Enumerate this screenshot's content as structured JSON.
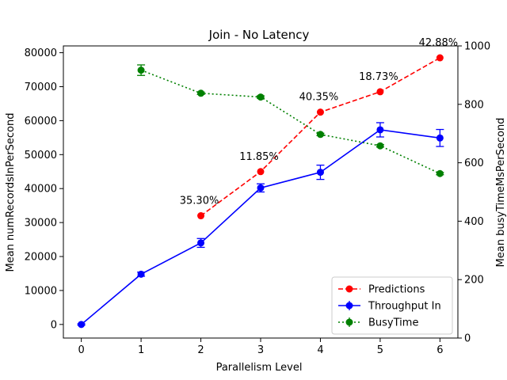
{
  "chart_data": {
    "type": "line",
    "title": "Join - No Latency",
    "xlabel": "Parallelism Level",
    "ylabel_left": "Mean numRecordsInPerSecond",
    "ylabel_right": "Mean busyTimeMsPerSecond",
    "x_ticks": [
      "0",
      "1",
      "2",
      "3",
      "4",
      "5",
      "6"
    ],
    "y_left_ticks": [
      "0",
      "10000",
      "20000",
      "30000",
      "40000",
      "50000",
      "60000",
      "70000",
      "80000"
    ],
    "y_right_ticks": [
      "0",
      "200",
      "400",
      "600",
      "800",
      "1000"
    ],
    "xlim": [
      -0.3,
      6.3
    ],
    "ylim_left": [
      -4000,
      82000
    ],
    "ylim_right": [
      0,
      1000
    ],
    "grid": false,
    "legend_position": "lower-right",
    "series": [
      {
        "name": "Predictions",
        "axis": "left",
        "color": "#ff0000",
        "line_style": "dashed",
        "marker": "circle",
        "x": [
          2,
          3,
          4,
          5,
          6
        ],
        "y": [
          32000,
          45000,
          62500,
          68500,
          78500
        ]
      },
      {
        "name": "Throughput In",
        "axis": "left",
        "color": "#0000ff",
        "line_style": "solid",
        "marker": "circle",
        "error_bars": true,
        "x": [
          0,
          1,
          2,
          3,
          4,
          5,
          6
        ],
        "y": [
          0,
          14800,
          24000,
          40200,
          44800,
          57300,
          54900
        ],
        "err": [
          200,
          600,
          1300,
          1200,
          2100,
          2100,
          2500
        ]
      },
      {
        "name": "BusyTime",
        "axis": "right",
        "color": "#008000",
        "line_style": "dotted",
        "marker": "circle",
        "error_bars": true,
        "x": [
          1,
          2,
          3,
          4,
          5,
          6
        ],
        "y": [
          917,
          838,
          825,
          697,
          658,
          563
        ],
        "err": [
          18,
          4,
          4,
          4,
          4,
          4
        ]
      }
    ],
    "annotations": [
      {
        "text": "35.30%",
        "x": 2,
        "y": 32000
      },
      {
        "text": "11.85%",
        "x": 3,
        "y": 45000
      },
      {
        "text": "40.35%",
        "x": 4,
        "y": 62500
      },
      {
        "text": "18.73%",
        "x": 5,
        "y": 68500
      },
      {
        "text": "42.88%",
        "x": 6,
        "y": 78500
      }
    ]
  }
}
